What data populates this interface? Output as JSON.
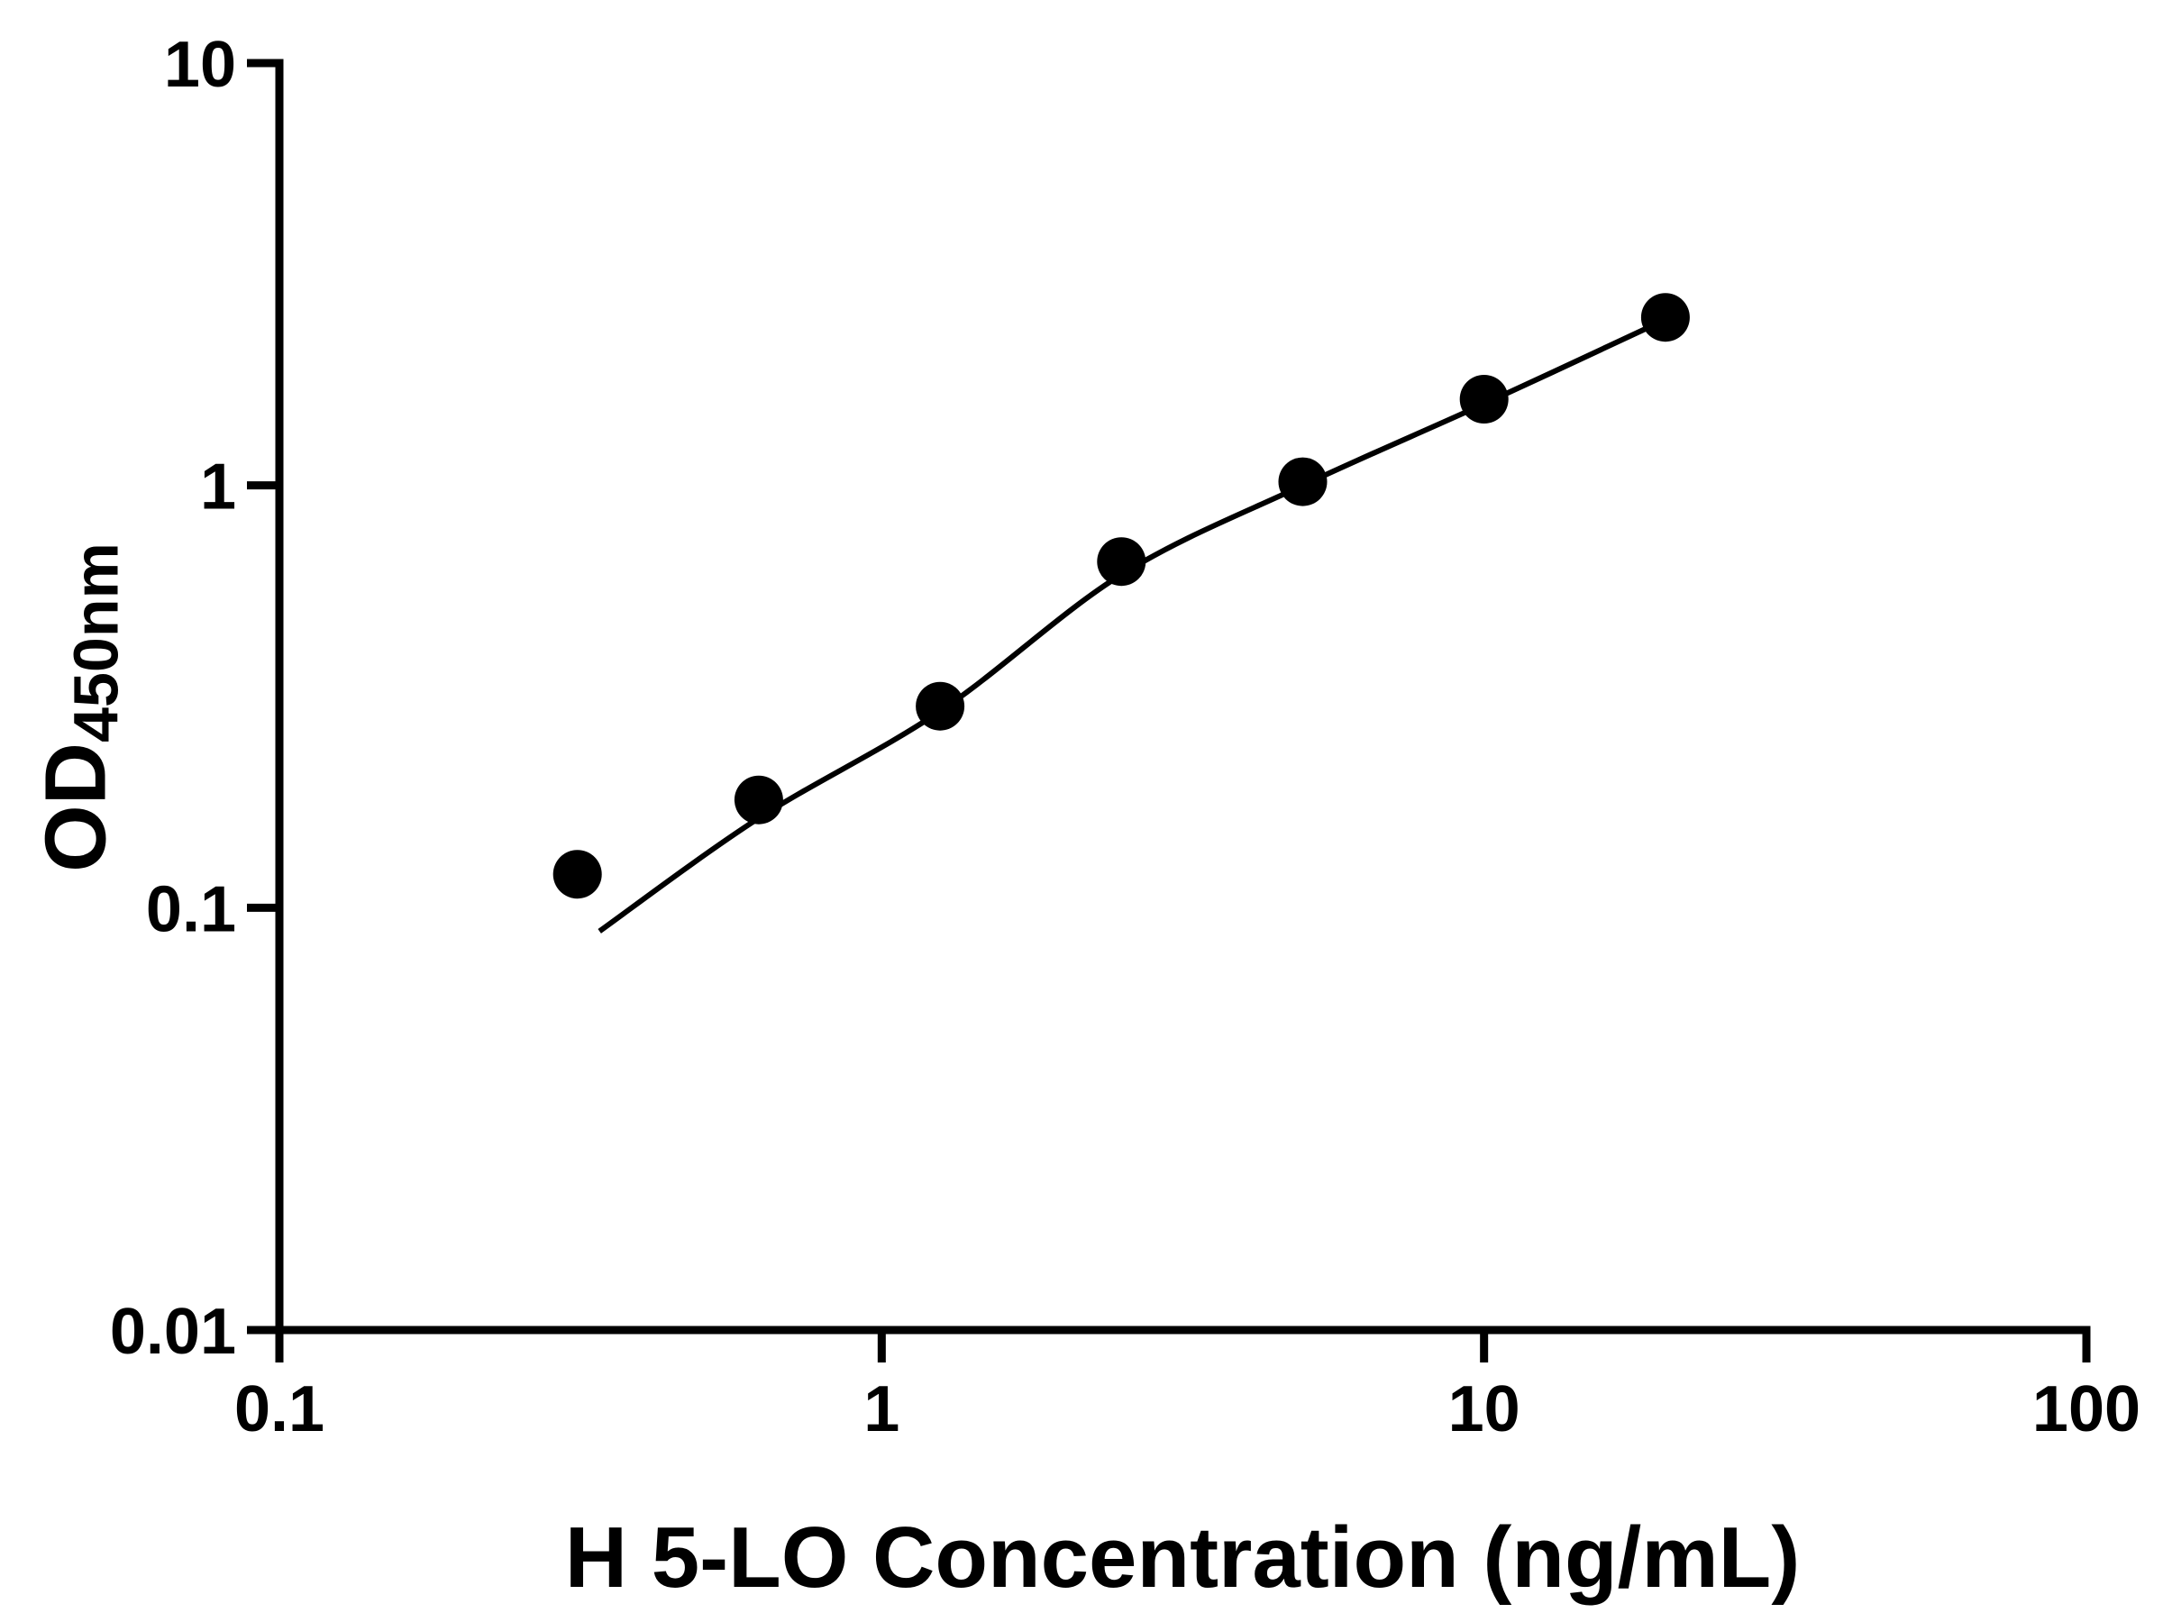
{
  "figure": {
    "background_color": "#ffffff",
    "ink_color": "#000000"
  },
  "chart_data": {
    "type": "scatter",
    "title": "",
    "xlabel": "H 5-LO Concentration (ng/mL)",
    "ylabel_main": "OD",
    "ylabel_sub": "450nm",
    "x_scale": "log",
    "y_scale": "log",
    "xlim": [
      0.1,
      100
    ],
    "ylim": [
      0.01,
      10
    ],
    "x_ticks": [
      0.1,
      1,
      10,
      100
    ],
    "x_tick_labels": [
      "0.1",
      "1",
      "10",
      "100"
    ],
    "y_ticks": [
      0.01,
      0.1,
      1,
      10
    ],
    "y_tick_labels": [
      "0.01",
      "0.1",
      "1",
      "10"
    ],
    "grid": false,
    "legend": false,
    "color": "#000000",
    "marker": {
      "shape": "filled-circle",
      "color": "#000000"
    },
    "line": {
      "style": "solid",
      "color": "#000000",
      "description": "fitted standard curve"
    },
    "points": [
      {
        "x": 0.3125,
        "y": 0.12
      },
      {
        "x": 0.625,
        "y": 0.18
      },
      {
        "x": 1.25,
        "y": 0.3
      },
      {
        "x": 2.5,
        "y": 0.66
      },
      {
        "x": 5,
        "y": 1.02
      },
      {
        "x": 10,
        "y": 1.6
      },
      {
        "x": 20,
        "y": 2.5
      }
    ],
    "fit_curve": [
      [
        0.34,
        0.088
      ],
      [
        0.625,
        0.163
      ],
      [
        1.25,
        0.292
      ],
      [
        2.5,
        0.615
      ],
      [
        5,
        1.0
      ],
      [
        10,
        1.56
      ],
      [
        20,
        2.47
      ]
    ]
  }
}
